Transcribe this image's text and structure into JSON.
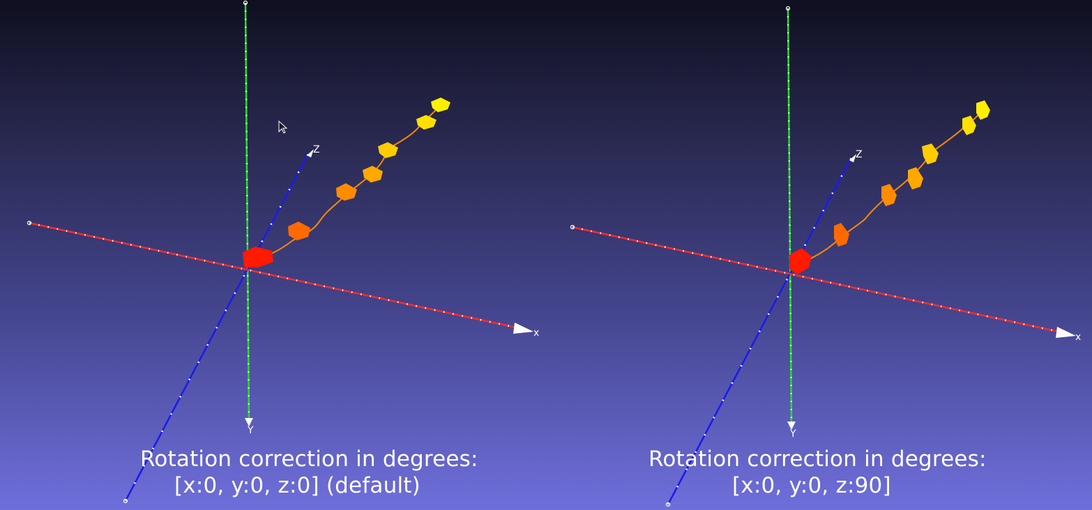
{
  "viewports": [
    {
      "caption_line1": "Rotation correction in degrees:",
      "caption_line2": "[x:0, y:0, z:0] (default)",
      "axis_labels": {
        "x": "x",
        "y": "Y",
        "z": "Z"
      }
    },
    {
      "caption_line1": "Rotation correction in degrees:",
      "caption_line2": "[x:0, y:0, z:90]",
      "axis_labels": {
        "x": "x",
        "y": "Y",
        "z": "Z"
      }
    }
  ],
  "colors": {
    "x_axis": "#ff2a2a",
    "y_axis": "#2bd92b",
    "z_axis": "#1a1aee",
    "path_start": "#ff1a00",
    "path_mid": "#ff7a00",
    "path_end": "#ffe400"
  },
  "cursor": "arrow-cursor"
}
